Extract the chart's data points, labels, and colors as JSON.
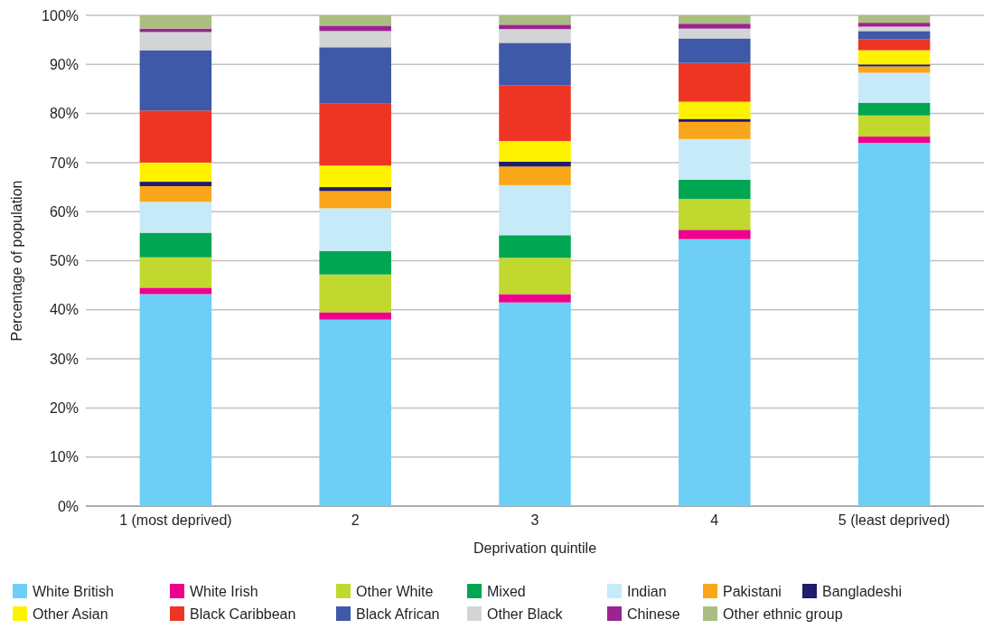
{
  "chart_data": {
    "type": "bar",
    "stacked": true,
    "xlabel": "Deprivation quintile",
    "ylabel": "Percentage of population",
    "categories": [
      "1 (most deprived)",
      "2",
      "3",
      "4",
      "5 (least deprived)"
    ],
    "ylim": [
      0,
      100
    ],
    "yticks": [
      {
        "value": 0,
        "label": "0%"
      },
      {
        "value": 10,
        "label": "10%"
      },
      {
        "value": 20,
        "label": "20%"
      },
      {
        "value": 30,
        "label": "30%"
      },
      {
        "value": 40,
        "label": "40%"
      },
      {
        "value": 50,
        "label": "50%"
      },
      {
        "value": 60,
        "label": "60%"
      },
      {
        "value": 70,
        "label": "70%"
      },
      {
        "value": 80,
        "label": "80%"
      },
      {
        "value": 90,
        "label": "90%"
      },
      {
        "value": 100,
        "label": "100%"
      }
    ],
    "grid": "y",
    "legend": "bottom",
    "series": [
      {
        "name": "White British",
        "color": "#6dcff6",
        "values": [
          43.2,
          38.0,
          41.5,
          54.4,
          74.0
        ]
      },
      {
        "name": "White Irish",
        "color": "#ec008c",
        "values": [
          1.3,
          1.5,
          1.7,
          1.9,
          1.3
        ]
      },
      {
        "name": "Other White",
        "color": "#c1d82f",
        "values": [
          6.2,
          7.7,
          7.4,
          6.3,
          4.3
        ]
      },
      {
        "name": "Mixed",
        "color": "#00a651",
        "values": [
          5.0,
          4.8,
          4.6,
          3.9,
          2.6
        ]
      },
      {
        "name": "Indian",
        "color": "#c7eaf9",
        "values": [
          6.3,
          8.7,
          10.2,
          8.3,
          6.1
        ]
      },
      {
        "name": "Pakistani",
        "color": "#faa61a",
        "values": [
          3.2,
          3.5,
          3.8,
          3.5,
          1.3
        ]
      },
      {
        "name": "Bangladeshi",
        "color": "#211c6b",
        "values": [
          0.9,
          0.8,
          1.0,
          0.6,
          0.4
        ]
      },
      {
        "name": "Other Asian",
        "color": "#fff200",
        "values": [
          3.9,
          4.4,
          4.2,
          3.5,
          2.9
        ]
      },
      {
        "name": "Black Caribbean",
        "color": "#ee3524",
        "values": [
          10.6,
          12.6,
          11.3,
          7.9,
          2.2
        ]
      },
      {
        "name": "Black African",
        "color": "#3d59a8",
        "values": [
          12.3,
          11.5,
          8.7,
          5.0,
          1.7
        ]
      },
      {
        "name": "Other Black",
        "color": "#d3d4d6",
        "values": [
          3.7,
          3.3,
          2.8,
          2.0,
          0.9
        ]
      },
      {
        "name": "Chinese",
        "color": "#9b2490",
        "values": [
          0.7,
          1.1,
          0.9,
          1.0,
          0.8
        ]
      },
      {
        "name": "Other ethnic group",
        "color": "#abbe82",
        "values": [
          2.7,
          2.1,
          1.9,
          1.7,
          1.5
        ]
      }
    ]
  }
}
